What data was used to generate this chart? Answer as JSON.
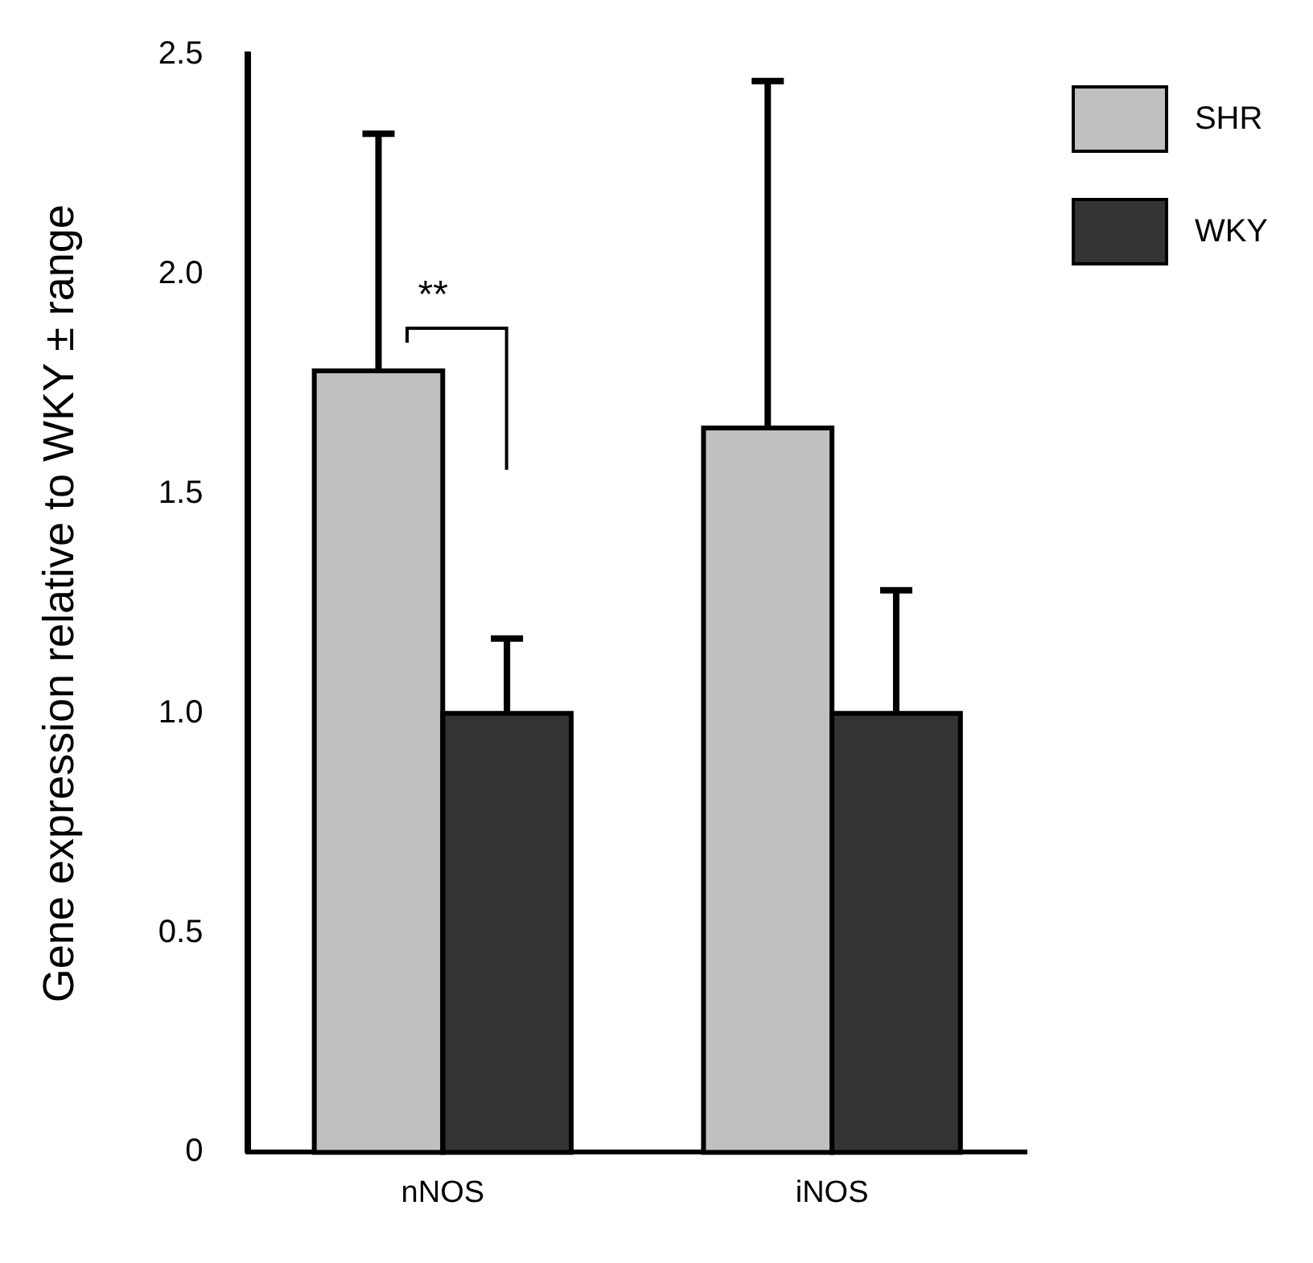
{
  "chart_data": {
    "type": "bar",
    "ylabel": "Gene expression relative to WKY ± range",
    "categories": [
      "nNOS",
      "iNOS"
    ],
    "series": [
      {
        "name": "SHR",
        "color": "#c0c0c0",
        "values": [
          1.78,
          1.65
        ],
        "errors": [
          [
            1.78,
            2.32
          ],
          [
            1.65,
            2.44
          ]
        ]
      },
      {
        "name": "WKY",
        "color": "#333333",
        "values": [
          1.0,
          1.0
        ],
        "errors": [
          [
            1.0,
            1.17
          ],
          [
            1.0,
            1.28
          ]
        ]
      }
    ],
    "ylim": [
      0,
      2.5
    ],
    "yticks": [
      0,
      0.5,
      {
        "value": 1,
        "label": "1.0"
      },
      1.5,
      {
        "value": 2,
        "label": "2.0"
      },
      2.5
    ],
    "annotations": [
      "**"
    ],
    "grid": false,
    "legend": "top right"
  }
}
